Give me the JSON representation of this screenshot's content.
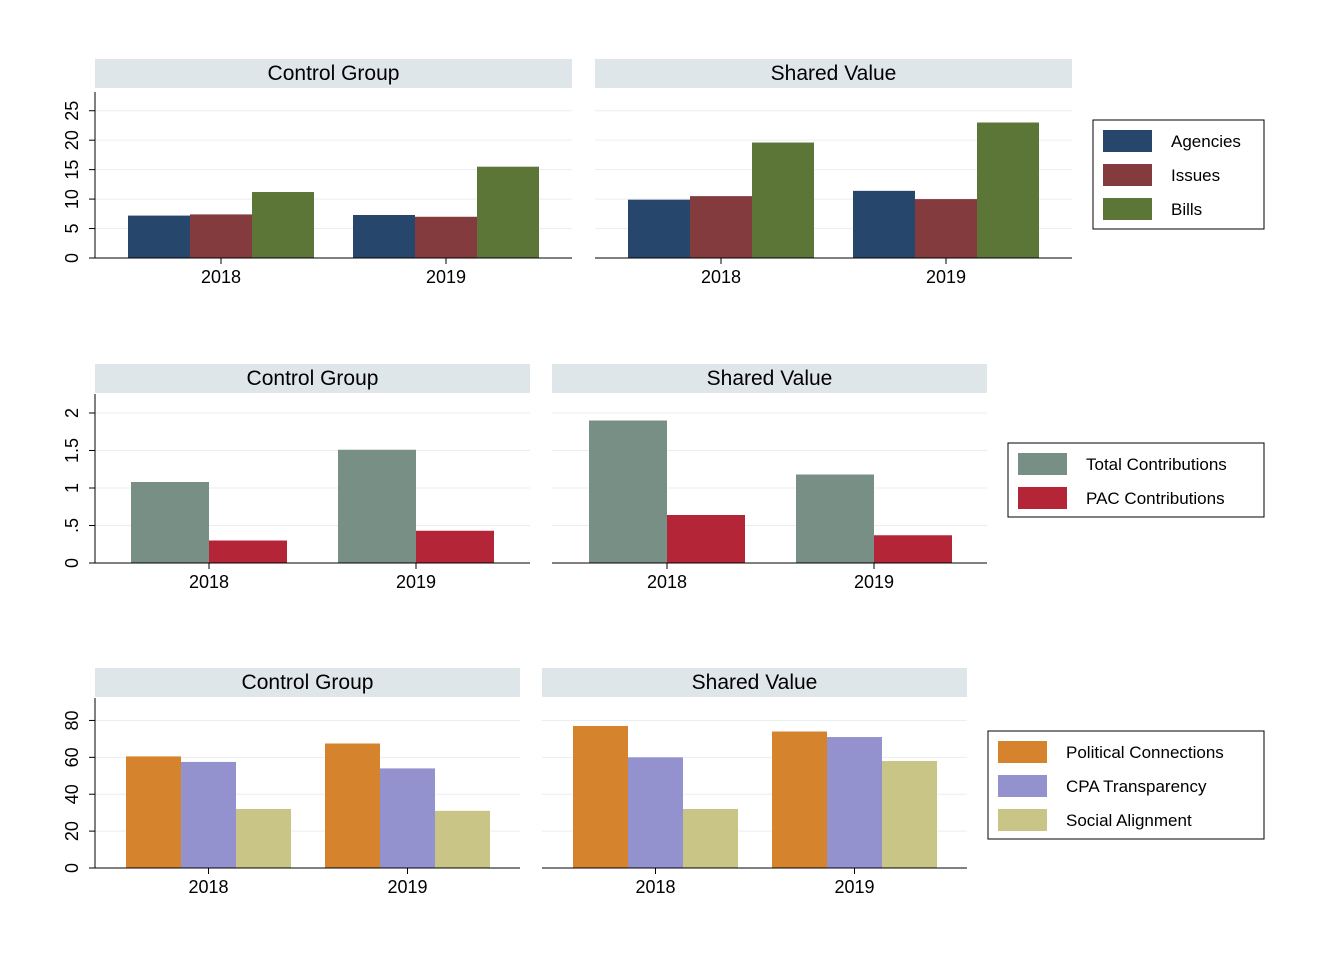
{
  "colors": {
    "agencies": "#27466b",
    "issues": "#843b3d",
    "bills": "#5c7637",
    "total_contributions": "#778f84",
    "pac_contributions": "#b52538",
    "political_connections": "#d6832e",
    "cpa_transparency": "#9491cf",
    "social_alignment": "#c9c586",
    "panel_header": "#dfe6ea",
    "gridline": "#e9eef1"
  },
  "chart_data": [
    {
      "type": "bar",
      "row": 1,
      "categories": [
        "2018",
        "2019"
      ],
      "yticks": [
        0,
        5,
        10,
        15,
        20,
        25
      ],
      "ytick_labels": [
        "0",
        "5",
        "10",
        "15",
        "20",
        "25"
      ],
      "ylim": [
        0,
        27.5
      ],
      "legend_position": "right",
      "legend": [
        {
          "label": "Agencies",
          "color_key": "agencies"
        },
        {
          "label": "Issues",
          "color_key": "issues"
        },
        {
          "label": "Bills",
          "color_key": "bills"
        }
      ],
      "panels": [
        {
          "title": "Control Group",
          "series": [
            {
              "name": "Agencies",
              "values": [
                7.2,
                7.3
              ]
            },
            {
              "name": "Issues",
              "values": [
                7.4,
                7.0
              ]
            },
            {
              "name": "Bills",
              "values": [
                11.2,
                15.5
              ]
            }
          ]
        },
        {
          "title": "Shared Value",
          "series": [
            {
              "name": "Agencies",
              "values": [
                9.9,
                11.4
              ]
            },
            {
              "name": "Issues",
              "values": [
                10.5,
                10.0
              ]
            },
            {
              "name": "Bills",
              "values": [
                19.6,
                23.0
              ]
            }
          ]
        }
      ]
    },
    {
      "type": "bar",
      "row": 2,
      "categories": [
        "2018",
        "2019"
      ],
      "yticks": [
        0,
        0.5,
        1,
        1.5,
        2
      ],
      "ytick_labels": [
        "0",
        ".5",
        "1",
        "1.5",
        "2"
      ],
      "ylim": [
        0,
        2.2
      ],
      "legend_position": "right",
      "legend": [
        {
          "label": "Total Contributions",
          "color_key": "total_contributions"
        },
        {
          "label": "PAC Contributions",
          "color_key": "pac_contributions"
        }
      ],
      "panels": [
        {
          "title": "Control Group",
          "series": [
            {
              "name": "Total Contributions",
              "values": [
                1.08,
                1.51
              ]
            },
            {
              "name": "PAC Contributions",
              "values": [
                0.3,
                0.43
              ]
            }
          ]
        },
        {
          "title": "Shared Value",
          "series": [
            {
              "name": "Total Contributions",
              "values": [
                1.9,
                1.18
              ]
            },
            {
              "name": "PAC Contributions",
              "values": [
                0.64,
                0.37
              ]
            }
          ]
        }
      ]
    },
    {
      "type": "bar",
      "row": 3,
      "categories": [
        "2018",
        "2019"
      ],
      "yticks": [
        0,
        20,
        40,
        60,
        80
      ],
      "ytick_labels": [
        "0",
        "20",
        "40",
        "60",
        "80"
      ],
      "ylim": [
        0,
        90
      ],
      "legend_position": "right",
      "legend": [
        {
          "label": "Political Connections",
          "color_key": "political_connections"
        },
        {
          "label": "CPA Transparency",
          "color_key": "cpa_transparency"
        },
        {
          "label": "Social Alignment",
          "color_key": "social_alignment"
        }
      ],
      "panels": [
        {
          "title": "Control Group",
          "series": [
            {
              "name": "Political Connections",
              "values": [
                60.5,
                67.5
              ]
            },
            {
              "name": "CPA Transparency",
              "values": [
                57.5,
                54.0
              ]
            },
            {
              "name": "Social Alignment",
              "values": [
                32.0,
                31.0
              ]
            }
          ]
        },
        {
          "title": "Shared Value",
          "series": [
            {
              "name": "Political Connections",
              "values": [
                77.0,
                74.0
              ]
            },
            {
              "name": "CPA Transparency",
              "values": [
                60.0,
                71.0
              ]
            },
            {
              "name": "Social Alignment",
              "values": [
                32.0,
                58.0
              ]
            }
          ]
        }
      ]
    }
  ]
}
